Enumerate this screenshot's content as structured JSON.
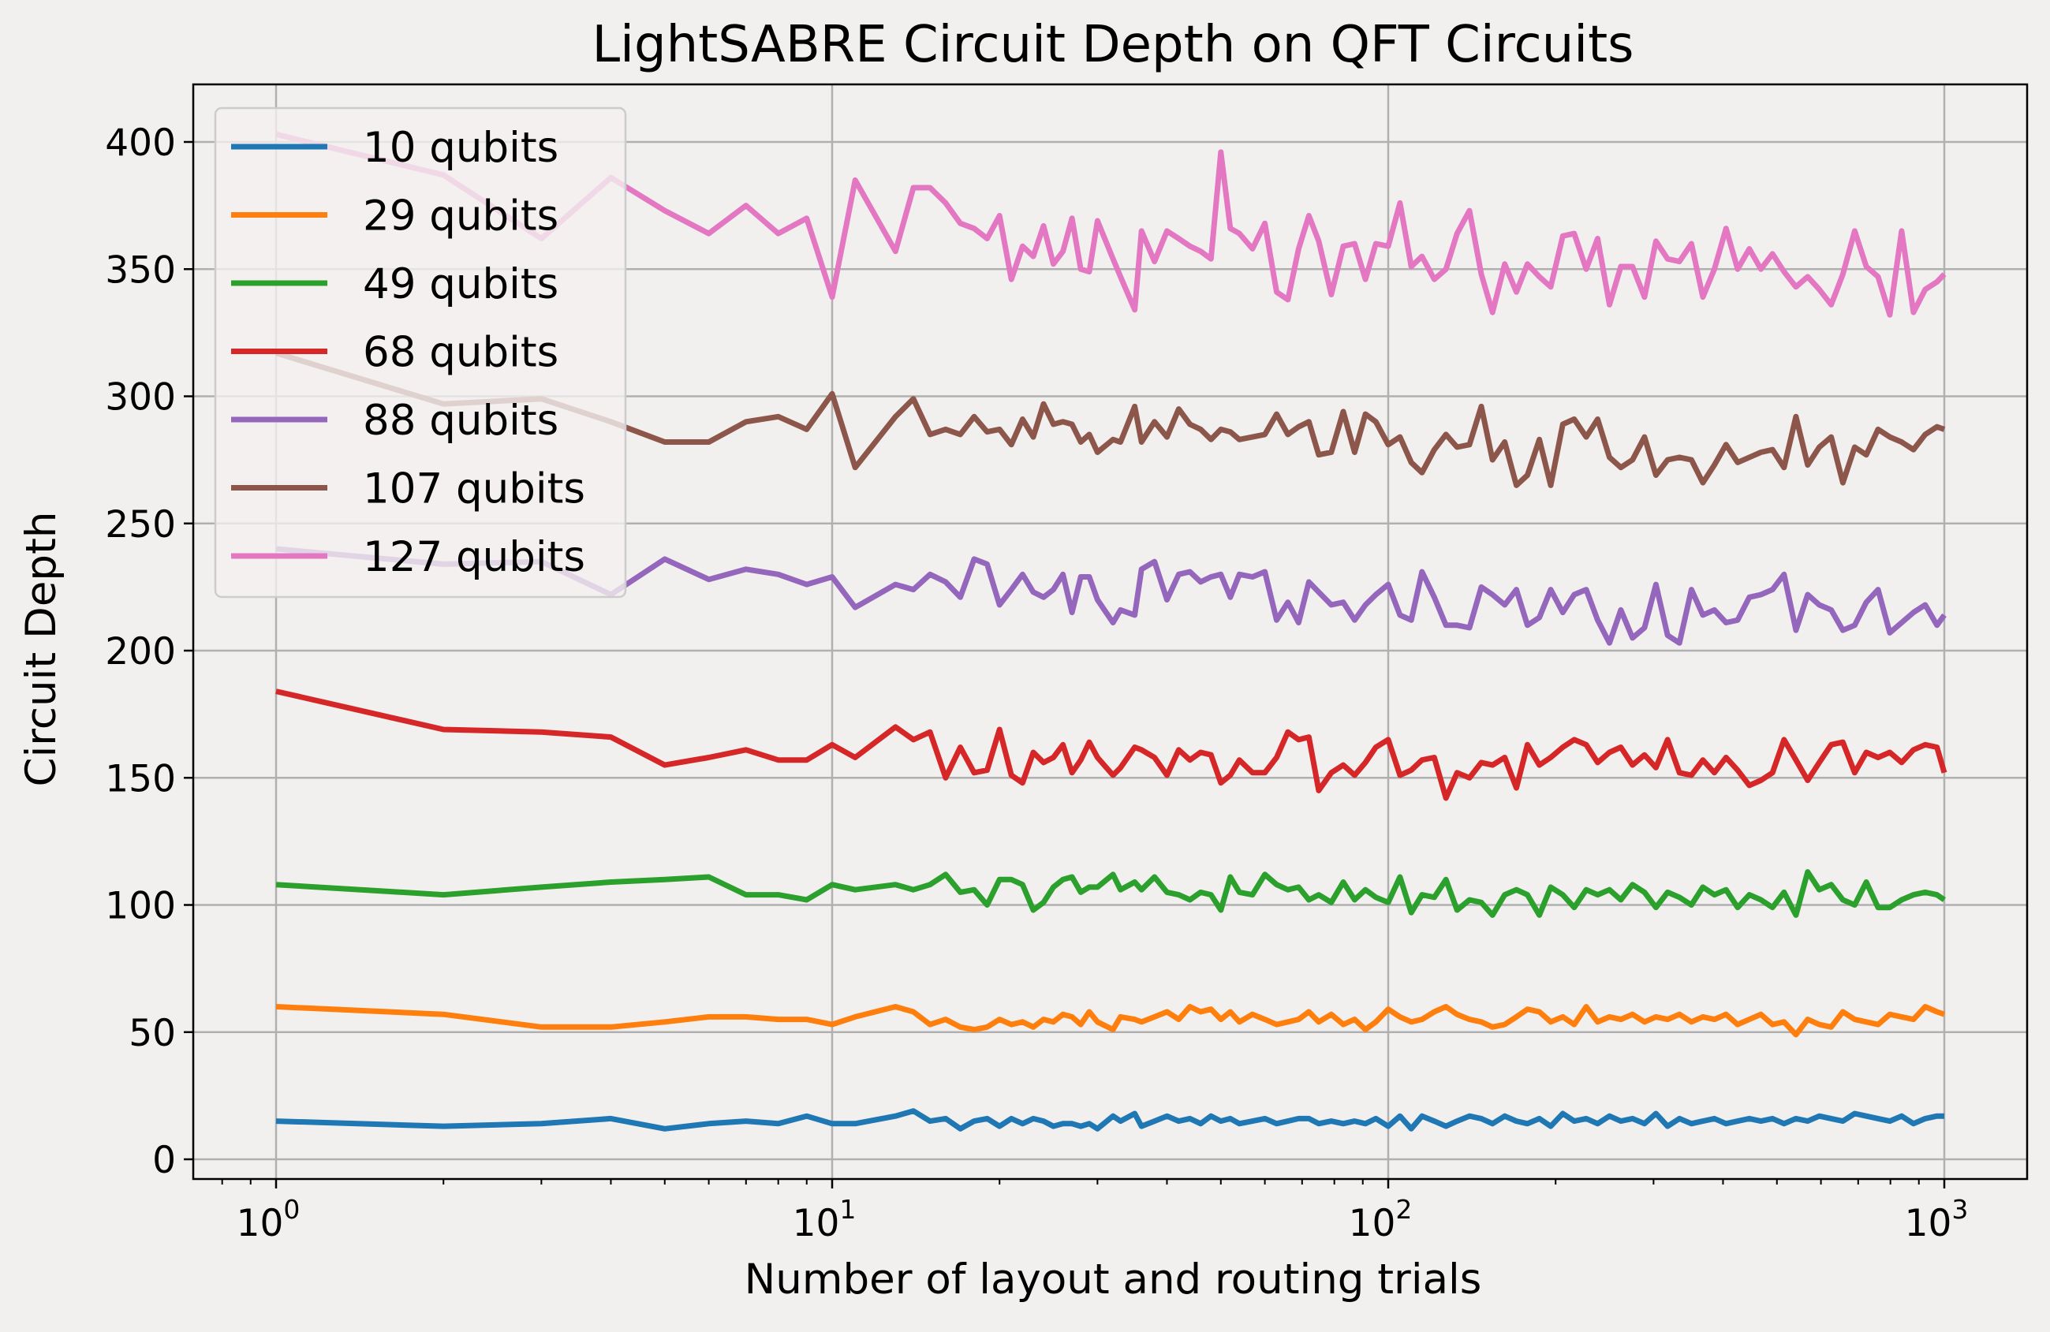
{
  "chart_data": {
    "type": "line",
    "title": "LightSABRE Circuit Depth on QFT Circuits",
    "xlabel": "Number of layout and routing trials",
    "ylabel": "Circuit Depth",
    "xscale": "log",
    "xlim": [
      0.7,
      1400
    ],
    "ylim": [
      -10,
      420
    ],
    "grid": true,
    "legend_position": "top-left",
    "x_ticks": [
      {
        "value": 1,
        "base": "10",
        "exp": "0"
      },
      {
        "value": 10,
        "base": "10",
        "exp": "1"
      },
      {
        "value": 100,
        "base": "10",
        "exp": "2"
      },
      {
        "value": 1000,
        "base": "10",
        "exp": "3"
      }
    ],
    "y_ticks": [
      0,
      50,
      100,
      150,
      200,
      250,
      300,
      350,
      400
    ],
    "x": [
      1,
      2,
      3,
      4,
      5,
      6,
      7,
      8,
      9,
      10,
      11,
      13,
      14,
      15,
      16,
      17,
      18,
      19,
      20,
      21,
      22,
      23,
      24,
      25,
      26,
      27,
      28,
      29,
      30,
      32,
      33,
      35,
      36,
      38,
      40,
      42,
      44,
      46,
      48,
      50,
      52,
      54,
      57,
      60,
      63,
      66,
      69,
      72,
      75,
      79,
      83,
      87,
      91,
      95,
      100,
      105,
      110,
      115,
      121,
      127,
      133,
      140,
      147,
      154,
      162,
      170,
      178,
      187,
      196,
      206,
      216,
      227,
      238,
      250,
      262,
      275,
      289,
      303,
      318,
      334,
      351,
      368,
      386,
      405,
      425,
      446,
      468,
      491,
      515,
      541,
      568,
      596,
      626,
      657,
      690,
      724,
      760,
      798,
      838,
      880,
      924,
      970,
      1000
    ],
    "series": [
      {
        "name": "10 qubits",
        "color": "#1f77b4",
        "values": [
          15,
          13,
          14,
          16,
          12,
          14,
          15,
          14,
          17,
          14,
          14,
          17,
          19,
          15,
          16,
          12,
          15,
          16,
          13,
          16,
          14,
          16,
          15,
          13,
          14,
          14,
          13,
          14,
          12,
          17,
          15,
          18,
          13,
          15,
          17,
          15,
          16,
          14,
          17,
          15,
          16,
          14,
          15,
          16,
          14,
          15,
          16,
          16,
          14,
          15,
          14,
          15,
          14,
          16,
          13,
          17,
          12,
          17,
          15,
          13,
          15,
          17,
          16,
          14,
          17,
          15,
          14,
          16,
          13,
          18,
          15,
          16,
          14,
          17,
          15,
          16,
          14,
          18,
          13,
          16,
          14,
          15,
          16,
          14,
          15,
          16,
          15,
          16,
          14,
          16,
          15,
          17,
          16,
          15,
          18,
          17,
          16,
          15,
          17,
          14,
          16,
          17,
          17
        ]
      },
      {
        "name": "29 qubits",
        "color": "#ff7f0e",
        "values": [
          60,
          57,
          52,
          52,
          54,
          56,
          56,
          55,
          55,
          53,
          56,
          60,
          58,
          53,
          55,
          52,
          51,
          52,
          55,
          53,
          54,
          52,
          55,
          54,
          57,
          56,
          53,
          58,
          54,
          51,
          56,
          55,
          54,
          56,
          58,
          55,
          60,
          58,
          59,
          55,
          58,
          54,
          57,
          55,
          53,
          54,
          55,
          58,
          54,
          57,
          53,
          55,
          51,
          54,
          59,
          56,
          54,
          55,
          58,
          60,
          57,
          55,
          54,
          52,
          53,
          56,
          59,
          58,
          54,
          56,
          53,
          60,
          54,
          56,
          55,
          57,
          54,
          56,
          55,
          57,
          54,
          56,
          55,
          57,
          53,
          55,
          57,
          53,
          54,
          49,
          55,
          53,
          52,
          58,
          55,
          54,
          53,
          57,
          56,
          55,
          60,
          58,
          57
        ]
      },
      {
        "name": "49 qubits",
        "color": "#2ca02c",
        "values": [
          108,
          104,
          107,
          109,
          110,
          111,
          104,
          104,
          102,
          108,
          106,
          108,
          106,
          108,
          112,
          105,
          106,
          100,
          110,
          110,
          108,
          98,
          101,
          107,
          110,
          111,
          105,
          107,
          107,
          112,
          106,
          109,
          106,
          111,
          105,
          104,
          102,
          105,
          104,
          98,
          111,
          105,
          104,
          112,
          108,
          106,
          107,
          102,
          104,
          101,
          109,
          102,
          106,
          103,
          101,
          111,
          97,
          104,
          103,
          110,
          98,
          102,
          101,
          96,
          104,
          106,
          104,
          96,
          107,
          104,
          99,
          106,
          104,
          106,
          102,
          108,
          105,
          99,
          105,
          103,
          100,
          107,
          104,
          106,
          99,
          104,
          102,
          99,
          105,
          96,
          113,
          106,
          108,
          102,
          100,
          109,
          99,
          99,
          102,
          104,
          105,
          104,
          102
        ]
      },
      {
        "name": "68 qubits",
        "color": "#d62728",
        "values": [
          184,
          169,
          168,
          166,
          155,
          158,
          161,
          157,
          157,
          163,
          158,
          170,
          165,
          168,
          150,
          162,
          152,
          153,
          169,
          151,
          148,
          160,
          156,
          158,
          163,
          152,
          157,
          164,
          158,
          151,
          154,
          162,
          161,
          158,
          151,
          161,
          157,
          160,
          159,
          148,
          151,
          157,
          152,
          152,
          158,
          168,
          165,
          166,
          145,
          152,
          155,
          151,
          156,
          162,
          165,
          151,
          153,
          157,
          158,
          142,
          152,
          150,
          156,
          155,
          158,
          146,
          163,
          155,
          158,
          162,
          165,
          163,
          156,
          160,
          162,
          155,
          159,
          154,
          165,
          152,
          151,
          157,
          152,
          158,
          153,
          147,
          149,
          152,
          165,
          157,
          149,
          156,
          163,
          164,
          152,
          160,
          158,
          160,
          156,
          161,
          163,
          162,
          152
        ]
      },
      {
        "name": "88 qubits",
        "color": "#9467bd",
        "values": [
          240,
          234,
          235,
          222,
          236,
          228,
          232,
          230,
          226,
          229,
          217,
          226,
          224,
          230,
          227,
          221,
          236,
          234,
          218,
          224,
          230,
          223,
          221,
          224,
          230,
          215,
          229,
          229,
          220,
          211,
          216,
          214,
          232,
          235,
          220,
          230,
          231,
          227,
          229,
          230,
          221,
          230,
          229,
          231,
          212,
          219,
          211,
          227,
          223,
          218,
          219,
          212,
          218,
          222,
          226,
          214,
          212,
          231,
          221,
          210,
          210,
          209,
          225,
          222,
          218,
          224,
          210,
          213,
          224,
          215,
          222,
          224,
          212,
          203,
          216,
          205,
          209,
          226,
          206,
          203,
          224,
          214,
          216,
          211,
          212,
          221,
          222,
          224,
          230,
          208,
          222,
          218,
          216,
          208,
          210,
          219,
          224,
          207,
          211,
          215,
          218,
          210,
          214
        ]
      },
      {
        "name": "107 qubits",
        "color": "#8c564b",
        "values": [
          317,
          297,
          299,
          290,
          282,
          282,
          290,
          292,
          287,
          301,
          272,
          292,
          299,
          285,
          287,
          285,
          292,
          286,
          287,
          281,
          291,
          284,
          297,
          289,
          290,
          289,
          282,
          285,
          278,
          283,
          282,
          296,
          282,
          290,
          284,
          295,
          289,
          287,
          283,
          287,
          286,
          283,
          284,
          285,
          293,
          285,
          288,
          290,
          277,
          278,
          294,
          278,
          293,
          290,
          281,
          284,
          274,
          270,
          279,
          285,
          280,
          281,
          296,
          275,
          282,
          265,
          269,
          283,
          265,
          289,
          291,
          284,
          291,
          276,
          272,
          275,
          284,
          269,
          275,
          276,
          275,
          266,
          273,
          281,
          274,
          276,
          278,
          279,
          272,
          292,
          273,
          280,
          284,
          266,
          280,
          277,
          287,
          284,
          282,
          279,
          285,
          288,
          287
        ]
      },
      {
        "name": "127 qubits",
        "color": "#e377c2",
        "values": [
          403,
          387,
          362,
          386,
          373,
          364,
          375,
          364,
          370,
          339,
          385,
          357,
          382,
          382,
          376,
          368,
          366,
          362,
          371,
          346,
          359,
          355,
          367,
          352,
          357,
          370,
          350,
          349,
          369,
          354,
          347,
          334,
          365,
          353,
          365,
          362,
          359,
          357,
          354,
          396,
          366,
          364,
          358,
          368,
          341,
          338,
          358,
          371,
          361,
          340,
          359,
          360,
          346,
          360,
          359,
          376,
          351,
          355,
          346,
          350,
          364,
          373,
          348,
          333,
          352,
          341,
          352,
          347,
          343,
          363,
          364,
          350,
          362,
          336,
          351,
          351,
          339,
          361,
          354,
          353,
          360,
          339,
          350,
          366,
          350,
          358,
          350,
          356,
          349,
          343,
          347,
          342,
          336,
          348,
          365,
          351,
          347,
          332,
          365,
          333,
          342,
          345,
          348
        ]
      }
    ]
  }
}
